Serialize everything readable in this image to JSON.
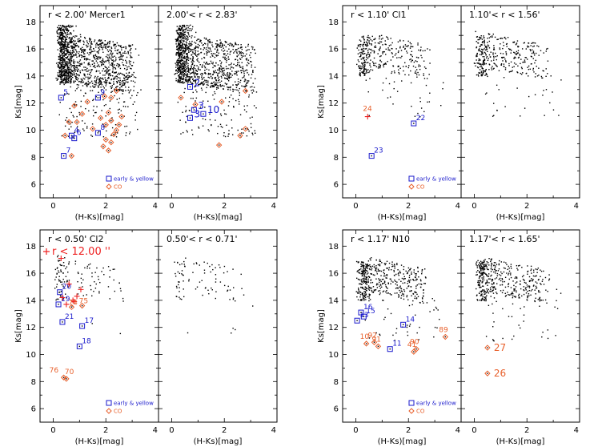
{
  "colors": {
    "early": "#1a1acc",
    "co": "#e8602c",
    "red": "#ee2222",
    "dots": "#000000"
  },
  "chart_data": [
    {
      "type": "scatter",
      "title": "r < 2.00'   Mercer1",
      "xlabel": "(H-Ks)[mag]",
      "ylabel": "Ks[mag]",
      "xlim": [
        -0.5,
        4
      ],
      "ylim": [
        19.2,
        5
      ],
      "xticks": [
        "0",
        "2",
        "4"
      ],
      "yticks": [
        "6",
        "8",
        "10",
        "12",
        "14",
        "16",
        "18"
      ],
      "legend": {
        "position": "bottom-right",
        "entries": [
          {
            "name": "early & yellow"
          },
          {
            "name": "CO"
          }
        ]
      },
      "background_field": {
        "seed": 11,
        "count": 1500,
        "mode": "wide"
      },
      "early": [
        {
          "x": 0.4,
          "y": 8.1,
          "label": "7"
        },
        {
          "x": 0.7,
          "y": 9.6,
          "label": "4"
        },
        {
          "x": 0.8,
          "y": 9.4,
          "label": "6"
        },
        {
          "x": 1.7,
          "y": 9.8,
          "label": "8"
        },
        {
          "x": 0.3,
          "y": 12.4,
          "label": "5"
        },
        {
          "x": 1.7,
          "y": 12.4,
          "label": "9"
        }
      ],
      "co": [
        {
          "x": 0.7,
          "y": 8.1
        },
        {
          "x": 0.45,
          "y": 9.6
        },
        {
          "x": 0.6,
          "y": 10.6
        },
        {
          "x": 0.8,
          "y": 11.8
        },
        {
          "x": 0.9,
          "y": 10.6
        },
        {
          "x": 1.1,
          "y": 11.2
        },
        {
          "x": 1.3,
          "y": 12.1
        },
        {
          "x": 1.5,
          "y": 10.1
        },
        {
          "x": 1.9,
          "y": 8.8
        },
        {
          "x": 2.0,
          "y": 9.3
        },
        {
          "x": 2.1,
          "y": 8.5
        },
        {
          "x": 2.2,
          "y": 9.1
        },
        {
          "x": 2.3,
          "y": 9.7
        },
        {
          "x": 2.4,
          "y": 10.0
        },
        {
          "x": 2.0,
          "y": 10.4
        },
        {
          "x": 2.2,
          "y": 10.7
        },
        {
          "x": 2.5,
          "y": 10.4
        },
        {
          "x": 1.8,
          "y": 10.9
        },
        {
          "x": 2.1,
          "y": 11.3
        },
        {
          "x": 2.6,
          "y": 11.0
        },
        {
          "x": 2.2,
          "y": 12.4
        },
        {
          "x": 2.4,
          "y": 12.9
        },
        {
          "x": 1.95,
          "y": 12.5
        }
      ],
      "red_plus": [],
      "annotations": []
    },
    {
      "type": "scatter",
      "title": "2.00'< r < 2.83'",
      "xlabel": "(H-Ks)[mag]",
      "ylabel": "",
      "xlim": [
        -0.5,
        4
      ],
      "ylim": [
        19.2,
        5
      ],
      "xticks": [
        "0",
        "2",
        "4"
      ],
      "yticks": [],
      "legend": null,
      "background_field": {
        "seed": 23,
        "count": 1300,
        "mode": "wide"
      },
      "early": [
        {
          "x": 0.7,
          "y": 10.9,
          "label": "3"
        },
        {
          "x": 0.85,
          "y": 11.5,
          "label": "3"
        },
        {
          "x": 1.2,
          "y": 11.2,
          "label": "10"
        },
        {
          "x": 0.7,
          "y": 13.2,
          "label": "2"
        }
      ],
      "co": [
        {
          "x": 1.8,
          "y": 8.9
        },
        {
          "x": 2.6,
          "y": 9.6
        },
        {
          "x": 2.8,
          "y": 10.1
        },
        {
          "x": 0.35,
          "y": 12.4
        },
        {
          "x": 0.9,
          "y": 11.9
        },
        {
          "x": 1.9,
          "y": 12.1
        },
        {
          "x": 2.8,
          "y": 12.9
        }
      ],
      "red_plus": [],
      "annotations": []
    },
    {
      "type": "scatter",
      "title": "r < 1.10'   Cl1",
      "xlabel": "(H-Ks)[mag]",
      "ylabel": "Ks[mag]",
      "xlim": [
        -0.5,
        4
      ],
      "ylim": [
        19.2,
        5
      ],
      "xticks": [
        "0",
        "2",
        "4"
      ],
      "yticks": [
        "6",
        "8",
        "10",
        "12",
        "14",
        "16",
        "18"
      ],
      "legend": {
        "position": "bottom-right",
        "entries": [
          {
            "name": "early & yellow"
          },
          {
            "name": "CO"
          }
        ]
      },
      "background_field": {
        "seed": 37,
        "count": 380,
        "mode": "sparse"
      },
      "early": [
        {
          "x": 0.6,
          "y": 8.1,
          "label": "23"
        },
        {
          "x": 2.2,
          "y": 10.5,
          "label": "22"
        }
      ],
      "co": [],
      "red_plus": [
        {
          "x": 0.45,
          "y": 11.0
        }
      ],
      "annotations": [
        {
          "x": 0.45,
          "y": 11.0,
          "label": "24"
        }
      ]
    },
    {
      "type": "scatter",
      "title": "1.10'< r < 1.56'",
      "xlabel": "(H-Ks)[mag]",
      "ylabel": "",
      "xlim": [
        -0.5,
        4
      ],
      "ylim": [
        19.2,
        5
      ],
      "xticks": [
        "0",
        "2",
        "4"
      ],
      "yticks": [],
      "legend": null,
      "background_field": {
        "seed": 41,
        "count": 380,
        "mode": "sparse"
      },
      "early": [],
      "co": [],
      "red_plus": [],
      "annotations": []
    },
    {
      "type": "scatter",
      "title": "r < 0.50'   Cl2",
      "title2": "r < 12.00 ''",
      "xlabel": "(H-Ks)[mag]",
      "ylabel": "Ks[mag]",
      "xlim": [
        -0.5,
        4
      ],
      "ylim": [
        19.2,
        5
      ],
      "xticks": [
        "0",
        "2",
        "4"
      ],
      "yticks": [
        "6",
        "8",
        "10",
        "12",
        "14",
        "16",
        "18"
      ],
      "legend": {
        "position": "bottom-right",
        "entries": [
          {
            "name": "early & yellow"
          },
          {
            "name": "CO"
          }
        ]
      },
      "background_field": {
        "seed": 53,
        "count": 120,
        "mode": "sparse"
      },
      "early": [
        {
          "x": 1.0,
          "y": 10.6,
          "label": "18"
        },
        {
          "x": 0.35,
          "y": 12.4,
          "label": "21"
        },
        {
          "x": 1.1,
          "y": 12.1,
          "label": "17"
        },
        {
          "x": 0.2,
          "y": 13.7,
          "label": "19"
        },
        {
          "x": 0.25,
          "y": 14.6,
          "label": "20"
        }
      ],
      "co": [
        {
          "x": 0.4,
          "y": 8.3
        },
        {
          "x": 0.5,
          "y": 8.2
        },
        {
          "x": 0.7,
          "y": 13.5
        },
        {
          "x": 1.1,
          "y": 13.6
        }
      ],
      "red_plus": [
        {
          "x": 0.5,
          "y": 13.7
        },
        {
          "x": 0.8,
          "y": 13.9
        },
        {
          "x": 0.9,
          "y": 14.3
        },
        {
          "x": 1.05,
          "y": 14.8
        },
        {
          "x": 0.6,
          "y": 15.2
        },
        {
          "x": 0.35,
          "y": 14.2
        },
        {
          "x": 0.3,
          "y": 17.1
        },
        {
          "x": 0.75,
          "y": 14.0
        }
      ],
      "annotations": [
        {
          "x": 0.4,
          "y": 8.3,
          "label": "76"
        },
        {
          "x": 0.5,
          "y": 8.2,
          "label": "70"
        },
        {
          "x": 0.7,
          "y": 13.5,
          "label": "74"
        },
        {
          "x": 1.1,
          "y": 13.6,
          "label": "75"
        }
      ]
    },
    {
      "type": "scatter",
      "title": "0.50'< r < 0.71'",
      "xlabel": "(H-Ks)[mag]",
      "ylabel": "",
      "xlim": [
        -0.5,
        4
      ],
      "ylim": [
        19.2,
        5
      ],
      "xticks": [
        "0",
        "2",
        "4"
      ],
      "yticks": [],
      "legend": null,
      "background_field": {
        "seed": 61,
        "count": 90,
        "mode": "sparse"
      },
      "early": [],
      "co": [],
      "red_plus": [],
      "annotations": []
    },
    {
      "type": "scatter",
      "title": "r < 1.17'   N10",
      "xlabel": "(H-Ks)[mag]",
      "ylabel": "Ks[mag]",
      "xlim": [
        -0.5,
        4
      ],
      "ylim": [
        19.2,
        5
      ],
      "xticks": [
        "0",
        "2",
        "4"
      ],
      "yticks": [
        "6",
        "8",
        "10",
        "12",
        "14",
        "16",
        "18"
      ],
      "legend": {
        "position": "bottom-right",
        "entries": [
          {
            "name": "early & yellow"
          },
          {
            "name": "CO"
          }
        ]
      },
      "background_field": {
        "seed": 71,
        "count": 520,
        "mode": "sparse"
      },
      "early": [
        {
          "x": 1.3,
          "y": 10.4,
          "label": "11"
        },
        {
          "x": 0.05,
          "y": 12.5,
          "label": "13"
        },
        {
          "x": 0.3,
          "y": 12.8,
          "label": "15"
        },
        {
          "x": 0.2,
          "y": 13.1,
          "label": "16"
        },
        {
          "x": 1.8,
          "y": 12.2,
          "label": "14"
        }
      ],
      "co": [
        {
          "x": 0.4,
          "y": 10.8
        },
        {
          "x": 0.7,
          "y": 10.9
        },
        {
          "x": 0.85,
          "y": 10.6
        },
        {
          "x": 2.2,
          "y": 10.2
        },
        {
          "x": 2.3,
          "y": 10.4
        },
        {
          "x": 3.4,
          "y": 11.3
        }
      ],
      "red_plus": [],
      "annotations": [
        {
          "x": 0.4,
          "y": 10.8,
          "label": "10"
        },
        {
          "x": 0.7,
          "y": 10.9,
          "label": "92"
        },
        {
          "x": 0.85,
          "y": 10.6,
          "label": "91"
        },
        {
          "x": 2.2,
          "y": 10.2,
          "label": "41"
        },
        {
          "x": 2.3,
          "y": 10.4,
          "label": "90"
        },
        {
          "x": 3.4,
          "y": 11.3,
          "label": "89"
        }
      ]
    },
    {
      "type": "scatter",
      "title": "1.17'< r < 1.65'",
      "xlabel": "(H-Ks)[mag]",
      "ylabel": "",
      "xlim": [
        -0.5,
        4
      ],
      "ylim": [
        19.2,
        5
      ],
      "xticks": [
        "0",
        "2",
        "4"
      ],
      "yticks": [],
      "legend": null,
      "background_field": {
        "seed": 83,
        "count": 480,
        "mode": "sparse"
      },
      "early": [],
      "co": [
        {
          "x": 0.5,
          "y": 8.6
        },
        {
          "x": 0.5,
          "y": 10.5
        }
      ],
      "red_plus": [],
      "annotations": [
        {
          "x": 0.5,
          "y": 8.6,
          "label": "26"
        },
        {
          "x": 0.5,
          "y": 10.5,
          "label": "27"
        }
      ]
    }
  ]
}
